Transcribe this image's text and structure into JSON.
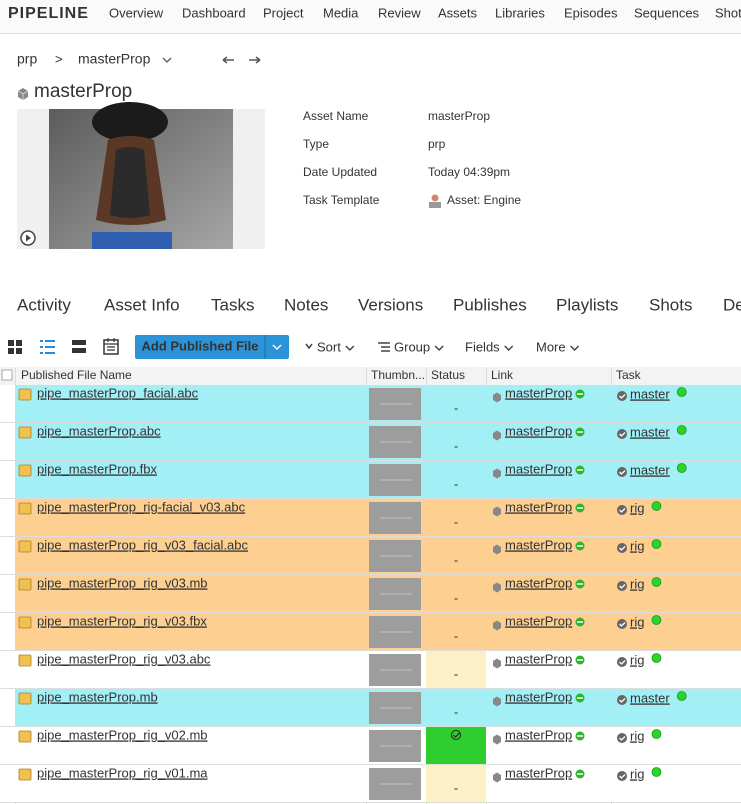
{
  "nav": {
    "brand": "PIPELINE",
    "items": [
      "Overview",
      "Dashboard",
      "Project",
      "Media",
      "Review",
      "Assets",
      "Libraries",
      "Episodes",
      "Sequences",
      "Shot"
    ]
  },
  "breadcrumb": [
    "prp",
    ">",
    "masterProp"
  ],
  "title": "masterProp",
  "fields": [
    [
      "Asset Name",
      "masterProp"
    ],
    [
      "Type",
      "prp"
    ],
    [
      "Date Updated",
      "Today 04:39pm"
    ],
    [
      "Task Template",
      "Asset: Engine"
    ]
  ],
  "tabs": {
    "items": [
      "Activity",
      "Asset Info",
      "Tasks",
      "Notes",
      "Versions",
      "Publishes",
      "Playlists",
      "Shots",
      "De"
    ],
    "active": 5
  },
  "toolbar": {
    "button": "Add Published File",
    "menus": [
      "Sort",
      "Group",
      "Fields",
      "More"
    ]
  },
  "table": {
    "columns": [
      "Published File Name",
      "Thumbn...",
      "Status",
      "Link",
      "Task"
    ],
    "rows": [
      {
        "name": "pipe_masterProp_facial.abc",
        "status": "-",
        "link": "masterProp",
        "task": "master",
        "color": "#a3eff6"
      },
      {
        "name": "pipe_masterProp.abc",
        "status": "-",
        "link": "masterProp",
        "task": "master",
        "color": "#a3eff6"
      },
      {
        "name": "pipe_masterProp.fbx",
        "status": "-",
        "link": "masterProp",
        "task": "master",
        "color": "#a3eff6"
      },
      {
        "name": "pipe_masterProp_rig-facial_v03.abc",
        "status": "-",
        "link": "masterProp",
        "task": "rig",
        "color": "#fdd092"
      },
      {
        "name": "pipe_masterProp_rig_v03_facial.abc",
        "status": "-",
        "link": "masterProp",
        "task": "rig",
        "color": "#fdd092"
      },
      {
        "name": "pipe_masterProp_rig_v03.mb",
        "status": "-",
        "link": "masterProp",
        "task": "rig",
        "color": "#fdd092"
      },
      {
        "name": "pipe_masterProp_rig_v03.fbx",
        "status": "-",
        "link": "masterProp",
        "task": "rig",
        "color": "#fdd092"
      },
      {
        "name": "pipe_masterProp_rig_v03.abc",
        "status": "-",
        "link": "masterProp",
        "task": "rig",
        "color": "#ffffff",
        "status_color": "#fbf0c6"
      },
      {
        "name": "pipe_masterProp.mb",
        "status": "-",
        "link": "masterProp",
        "task": "master",
        "color": "#a3eff6"
      },
      {
        "name": "pipe_masterProp_rig_v02.mb",
        "link": "masterProp",
        "task": "rig",
        "color": "#ffffff",
        "status_color": "#2fce2f"
      },
      {
        "name": "pipe_masterProp_rig_v01.ma",
        "status": "-",
        "link": "masterProp",
        "task": "rig",
        "color": "#ffffff",
        "status_color": "#fbf0c6"
      }
    ]
  }
}
